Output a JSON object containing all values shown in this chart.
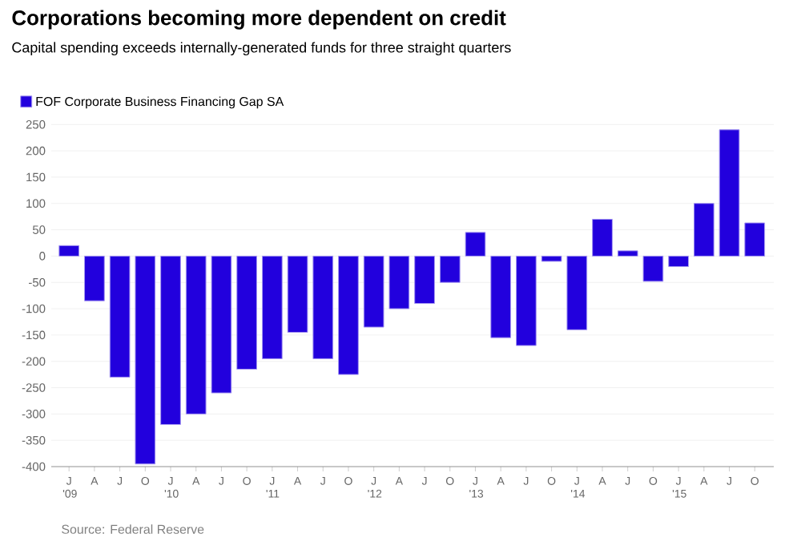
{
  "chart_data": {
    "type": "bar",
    "title": "Corporations becoming more dependent on credit",
    "subtitle": "Capital spending exceeds internally-generated funds for three straight quarters",
    "categories": [
      "J '09",
      "A",
      "J",
      "O",
      "J '10",
      "A",
      "J",
      "O",
      "J '11",
      "A",
      "J",
      "O",
      "J '12",
      "A",
      "J",
      "O",
      "J '13",
      "A",
      "J",
      "O",
      "J '14",
      "A",
      "J",
      "O",
      "J '15",
      "A",
      "J",
      "O"
    ],
    "series": [
      {
        "name": "FOF Corporate Business Financing Gap SA",
        "color": "#2200dd",
        "values": [
          20,
          -85,
          -230,
          -395,
          -320,
          -300,
          -260,
          -215,
          -195,
          -145,
          -195,
          -225,
          -135,
          -100,
          -90,
          -50,
          45,
          -155,
          -170,
          -10,
          -140,
          70,
          10,
          -48,
          -20,
          100,
          240,
          63
        ]
      }
    ],
    "ylim": [
      -400,
      255
    ],
    "yticks": [
      -400,
      -350,
      -300,
      -250,
      -200,
      -150,
      -100,
      -50,
      0,
      50,
      100,
      150,
      200,
      250
    ],
    "grid": "y",
    "legend": "top left",
    "annotations": [
      "Source: Federal Reserve"
    ]
  }
}
